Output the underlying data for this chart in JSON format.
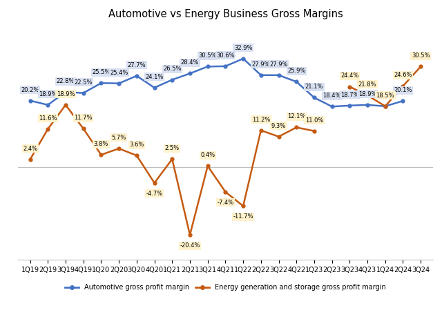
{
  "title": "Automotive vs Energy Business Gross Margins",
  "categories": [
    "1Q19",
    "2Q19",
    "3Q19",
    "4Q19",
    "1Q20",
    "2Q20",
    "3Q20",
    "4Q20",
    "1Q21",
    "2Q21",
    "3Q21",
    "4Q21",
    "1Q22",
    "2Q22",
    "3Q22",
    "4Q22",
    "1Q23",
    "2Q23",
    "3Q23",
    "4Q23",
    "1Q24",
    "2Q24",
    "3Q24"
  ],
  "automotive": [
    20.2,
    18.9,
    22.8,
    22.5,
    25.5,
    25.4,
    27.7,
    24.1,
    26.5,
    28.4,
    30.5,
    30.6,
    32.9,
    27.9,
    27.9,
    25.9,
    21.1,
    18.4,
    18.7,
    18.9,
    18.5,
    20.1,
    null
  ],
  "energy": [
    2.4,
    11.6,
    18.9,
    11.7,
    3.8,
    5.7,
    3.6,
    -4.7,
    2.5,
    -20.4,
    0.4,
    -7.4,
    -11.7,
    11.2,
    9.3,
    12.1,
    11.0,
    null,
    24.4,
    21.8,
    18.5,
    24.6,
    30.5
  ],
  "automotive_labels": [
    "20.2%",
    "18.9%",
    "22.8%",
    "22.5%",
    "25.5%",
    "25.4%",
    "27.7%",
    "24.1%",
    "26.5%",
    "28.4%",
    "30.5%",
    "30.6%",
    "32.9%",
    "27.9%",
    "27.9%",
    "25.9%",
    "21.1%",
    "18.4%",
    "18.7%",
    "18.9%",
    "18.5%",
    "20.1%",
    null
  ],
  "energy_labels": [
    "2.4%",
    "11.6%",
    "18.9%",
    "11.7%",
    "3.8%",
    "5.7%",
    "3.6%",
    "-4.7%",
    "2.5%",
    "-20.4%",
    "0.4%",
    "-7.4%",
    "-11.7%",
    "11.2%",
    "9.3%",
    "12.1%",
    "11.0%",
    null,
    "24.4%",
    "21.8%",
    "18.5%",
    "24.6%",
    "30.5%"
  ],
  "automotive_color": "#4472C4",
  "energy_color": "#C55A11",
  "auto_label_bg": "#D9E1F2",
  "energy_label_bg": "#FFF2CC",
  "ylim": [
    -28,
    42
  ],
  "legend_auto": "Automotive gross profit margin",
  "legend_energy": "Energy generation and storage gross profit margin",
  "background_color": "#FFFFFF",
  "plot_bg": "#FFFFFF",
  "zero_line_color": "#BFBFBF"
}
